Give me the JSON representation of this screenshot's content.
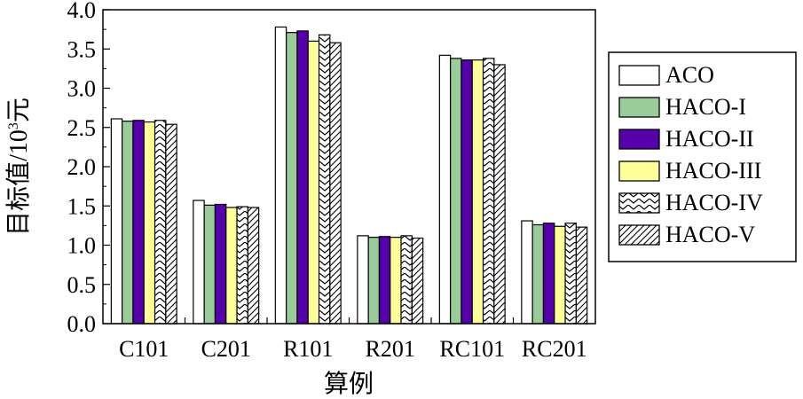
{
  "chart_data": {
    "type": "bar",
    "title": "",
    "xlabel": "算例",
    "ylabel": "目标值/10³元",
    "ylabel_parts": {
      "main": "目标值/10",
      "sup": "3",
      "unit": "元"
    },
    "ylim": [
      0,
      4.0
    ],
    "yticks": [
      "0.0",
      "0.5",
      "1.0",
      "1.5",
      "2.0",
      "2.5",
      "3.0",
      "3.5",
      "4.0"
    ],
    "categories": [
      "C101",
      "C201",
      "R101",
      "R201",
      "RC101",
      "RC201"
    ],
    "grid": false,
    "legend_position": "right",
    "series": [
      {
        "name": "ACO",
        "fill": "#ffffff",
        "pattern": "none",
        "values": [
          2.61,
          1.57,
          3.78,
          1.12,
          3.42,
          1.31
        ]
      },
      {
        "name": "HACO-I",
        "fill": "#99cc99",
        "pattern": "none",
        "values": [
          2.58,
          1.51,
          3.71,
          1.1,
          3.38,
          1.26
        ]
      },
      {
        "name": "HACO-II",
        "fill": "#5500aa",
        "pattern": "none",
        "values": [
          2.59,
          1.52,
          3.73,
          1.11,
          3.36,
          1.28
        ]
      },
      {
        "name": "HACO-III",
        "fill": "#ffff99",
        "pattern": "none",
        "values": [
          2.57,
          1.48,
          3.6,
          1.1,
          3.36,
          1.24
        ]
      },
      {
        "name": "HACO-IV",
        "fill": "#ffffff",
        "pattern": "zigzag",
        "values": [
          2.59,
          1.49,
          3.68,
          1.12,
          3.38,
          1.28
        ]
      },
      {
        "name": "HACO-V",
        "fill": "#ffffff",
        "pattern": "diagonal",
        "values": [
          2.54,
          1.48,
          3.58,
          1.09,
          3.3,
          1.23
        ]
      }
    ]
  }
}
